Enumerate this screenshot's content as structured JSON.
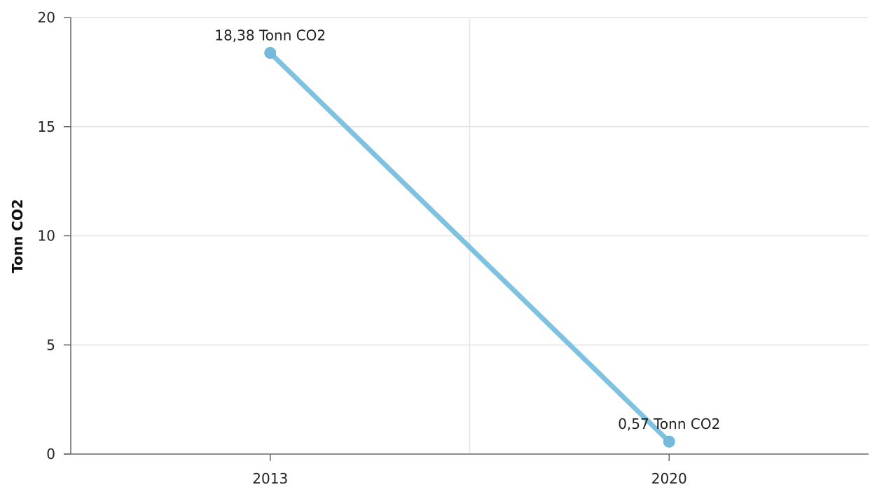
{
  "chart_data": {
    "type": "line",
    "title": "",
    "xlabel": "",
    "ylabel": "Tonn CO2",
    "categories": [
      "2013",
      "2020"
    ],
    "series": [
      {
        "values": [
          18.38,
          0.57
        ],
        "data_labels": [
          "18,38 Tonn CO2",
          "0,57 Tonn CO2"
        ]
      }
    ],
    "ylim": [
      0,
      20
    ],
    "yticks": [
      0,
      5,
      10,
      15,
      20
    ],
    "grid": true,
    "legend": "none",
    "colors": {
      "line": "#7fc1e1",
      "marker": "#72b9dc",
      "grid": "#e3e3e3",
      "axis": "#666666"
    }
  }
}
